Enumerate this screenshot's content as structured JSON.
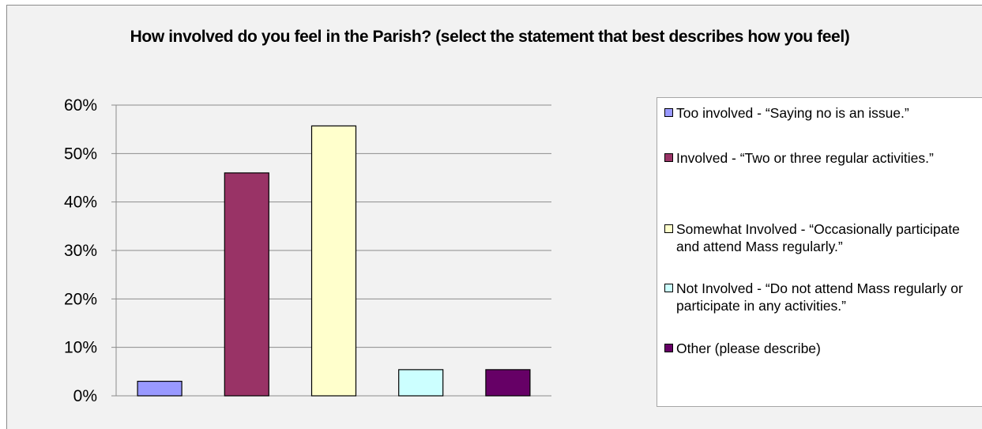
{
  "chart_data": {
    "type": "bar",
    "title": "How involved do you feel in the Parish? (select the statement that best describes how you feel)",
    "categories": [
      "Too involved - “Saying no is an issue.”",
      "Involved - “Two or three regular activities.”",
      "Somewhat Involved - “Occasionally participate and attend Mass regularly.”",
      "Not Involved - “Do not attend Mass regularly or participate in any activities.”",
      "Other (please describe)"
    ],
    "values": [
      3.0,
      46.0,
      55.7,
      5.4,
      5.4
    ],
    "colors": [
      "#9999ff",
      "#993366",
      "#ffffcc",
      "#ccffff",
      "#660066"
    ],
    "yticks": [
      "0%",
      "10%",
      "20%",
      "30%",
      "40%",
      "50%",
      "60%"
    ],
    "ylim": [
      0,
      60
    ],
    "grid": true,
    "legend_position": "right"
  }
}
